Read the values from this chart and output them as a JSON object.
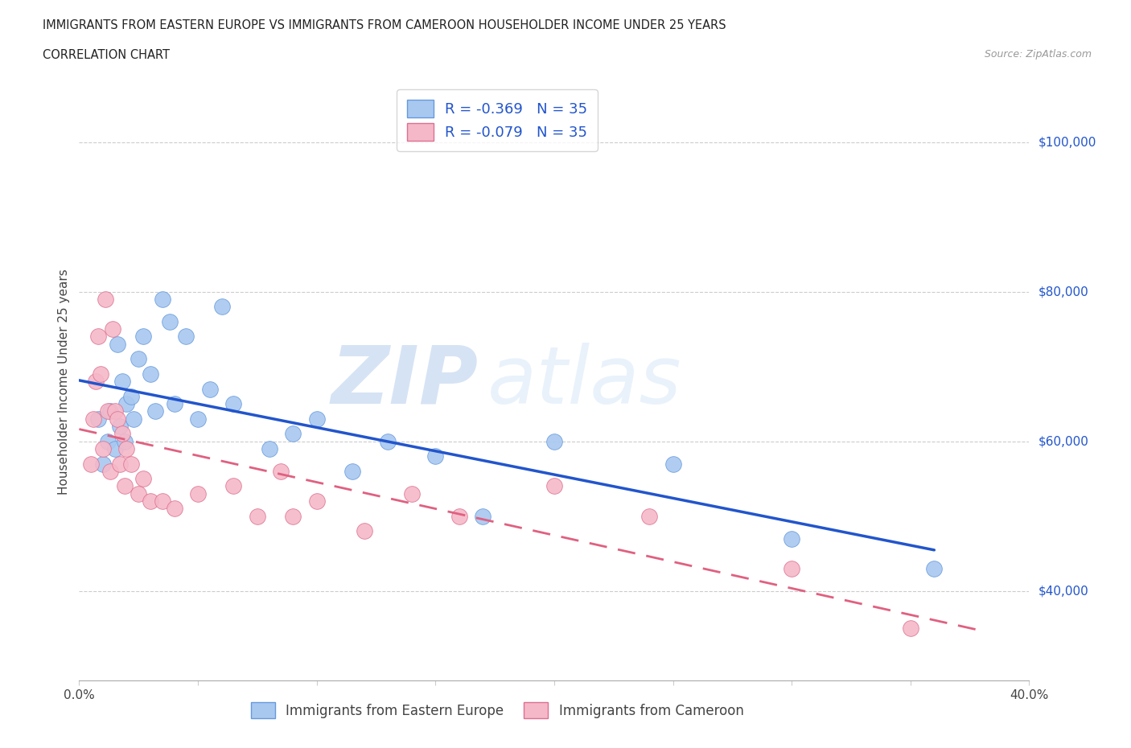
{
  "title_line1": "IMMIGRANTS FROM EASTERN EUROPE VS IMMIGRANTS FROM CAMEROON HOUSEHOLDER INCOME UNDER 25 YEARS",
  "title_line2": "CORRELATION CHART",
  "source_text": "Source: ZipAtlas.com",
  "ylabel": "Householder Income Under 25 years",
  "xlim": [
    0.0,
    0.4
  ],
  "ylim": [
    28000,
    108000
  ],
  "yticks": [
    40000,
    60000,
    80000,
    100000
  ],
  "ytick_labels": [
    "$40,000",
    "$60,000",
    "$80,000",
    "$100,000"
  ],
  "xticks": [
    0.0,
    0.05,
    0.1,
    0.15,
    0.2,
    0.25,
    0.3,
    0.35,
    0.4
  ],
  "r_eastern": -0.369,
  "n_eastern": 35,
  "r_cameroon": -0.079,
  "n_cameroon": 35,
  "color_eastern": "#a8c8f0",
  "color_cameroon": "#f5b8c8",
  "line_color_eastern": "#2255cc",
  "line_color_cameroon": "#e06080",
  "watermark_zip": "ZIP",
  "watermark_atlas": "atlas",
  "eastern_x": [
    0.008,
    0.01,
    0.012,
    0.013,
    0.015,
    0.016,
    0.017,
    0.018,
    0.019,
    0.02,
    0.022,
    0.023,
    0.025,
    0.027,
    0.03,
    0.032,
    0.035,
    0.038,
    0.04,
    0.045,
    0.05,
    0.055,
    0.06,
    0.065,
    0.08,
    0.09,
    0.1,
    0.115,
    0.13,
    0.15,
    0.17,
    0.2,
    0.25,
    0.3,
    0.36
  ],
  "eastern_y": [
    63000,
    57000,
    60000,
    64000,
    59000,
    73000,
    62000,
    68000,
    60000,
    65000,
    66000,
    63000,
    71000,
    74000,
    69000,
    64000,
    79000,
    76000,
    65000,
    74000,
    63000,
    67000,
    78000,
    65000,
    59000,
    61000,
    63000,
    56000,
    60000,
    58000,
    50000,
    60000,
    57000,
    47000,
    43000
  ],
  "cameroon_x": [
    0.005,
    0.006,
    0.007,
    0.008,
    0.009,
    0.01,
    0.011,
    0.012,
    0.013,
    0.014,
    0.015,
    0.016,
    0.017,
    0.018,
    0.019,
    0.02,
    0.022,
    0.025,
    0.027,
    0.03,
    0.035,
    0.04,
    0.05,
    0.065,
    0.075,
    0.085,
    0.09,
    0.1,
    0.12,
    0.14,
    0.16,
    0.2,
    0.24,
    0.3,
    0.35
  ],
  "cameroon_y": [
    57000,
    63000,
    68000,
    74000,
    69000,
    59000,
    79000,
    64000,
    56000,
    75000,
    64000,
    63000,
    57000,
    61000,
    54000,
    59000,
    57000,
    53000,
    55000,
    52000,
    52000,
    51000,
    53000,
    54000,
    50000,
    56000,
    50000,
    52000,
    48000,
    53000,
    50000,
    54000,
    50000,
    43000,
    35000
  ]
}
